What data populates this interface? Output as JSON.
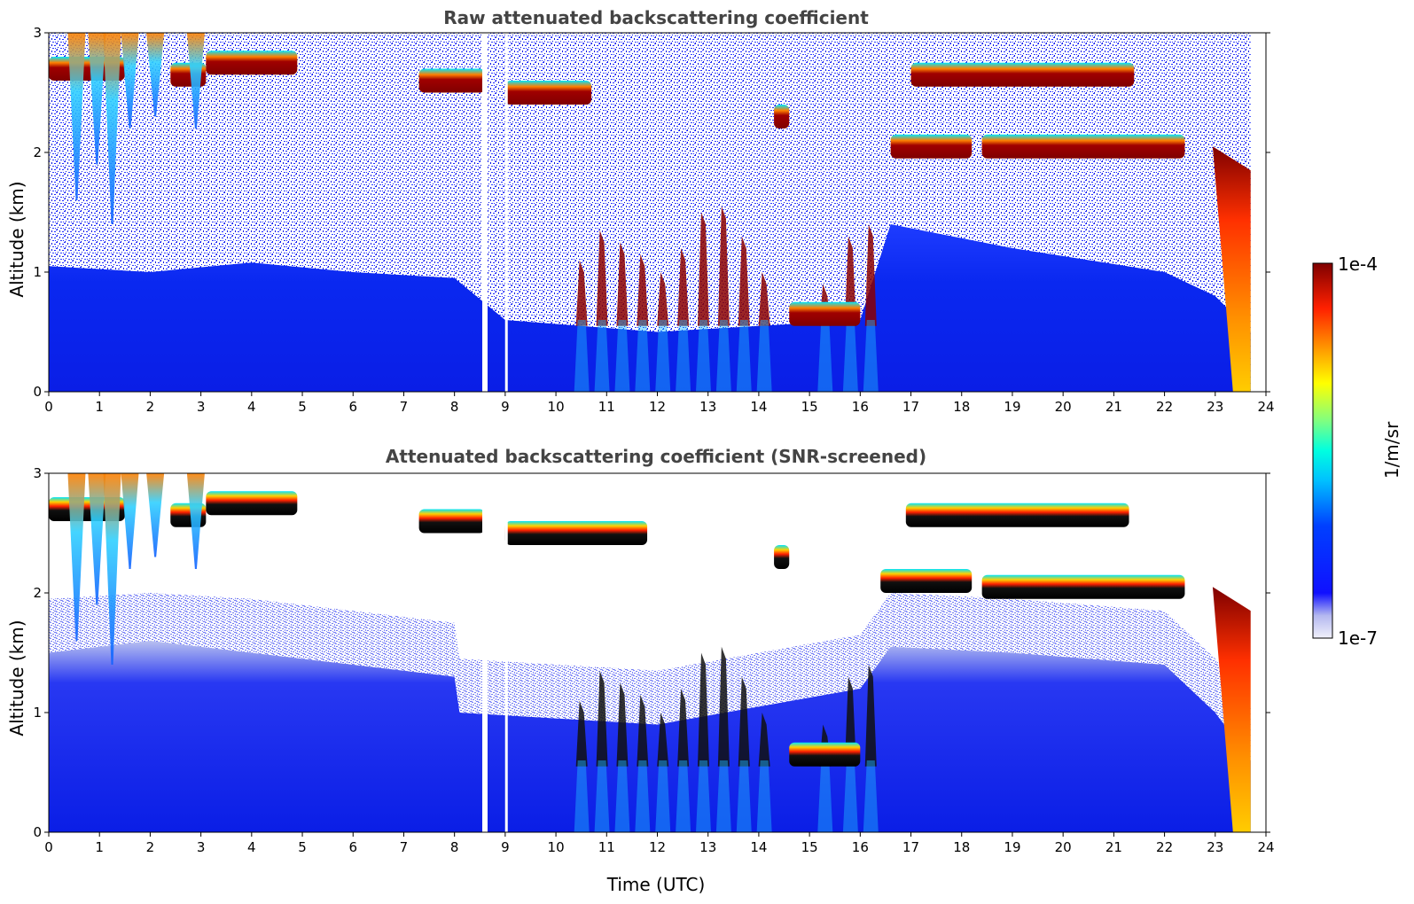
{
  "chart_data": [
    {
      "type": "heatmap",
      "title": "Raw attenuated backscattering coefficient",
      "xlabel": "",
      "ylabel": "Altitude (km)",
      "xlim": [
        0,
        24
      ],
      "ylim": [
        0,
        3
      ],
      "xticks": [
        0,
        1,
        2,
        3,
        4,
        5,
        6,
        7,
        8,
        9,
        10,
        11,
        12,
        13,
        14,
        15,
        16,
        17,
        18,
        19,
        20,
        21,
        22,
        23,
        24
      ],
      "yticks": [
        0,
        1,
        2,
        3
      ],
      "boundary_layer_top": [
        [
          0,
          1.05
        ],
        [
          2,
          1.0
        ],
        [
          4,
          1.08
        ],
        [
          6,
          1.0
        ],
        [
          8,
          0.95
        ],
        [
          9,
          0.6
        ],
        [
          12,
          0.5
        ],
        [
          16,
          0.6
        ],
        [
          16.6,
          1.4
        ],
        [
          19,
          1.2
        ],
        [
          22,
          1.0
        ],
        [
          23,
          0.8
        ],
        [
          23.7,
          0.5
        ]
      ],
      "clouds": [
        {
          "x0": 0,
          "x1": 1.5,
          "alt": 2.7
        },
        {
          "x0": 2.4,
          "x1": 3.1,
          "alt": 2.65
        },
        {
          "x0": 3.1,
          "x1": 4.9,
          "alt": 2.75
        },
        {
          "x0": 7.3,
          "x1": 8.6,
          "alt": 2.6
        },
        {
          "x0": 9.0,
          "x1": 10.7,
          "alt": 2.5
        },
        {
          "x0": 14.3,
          "x1": 14.6,
          "alt": 2.3
        },
        {
          "x0": 16.6,
          "x1": 18.2,
          "alt": 2.05
        },
        {
          "x0": 17.0,
          "x1": 21.4,
          "alt": 2.65
        },
        {
          "x0": 18.4,
          "x1": 22.4,
          "alt": 2.05
        },
        {
          "x0": 14.6,
          "x1": 16.0,
          "alt": 0.65
        }
      ],
      "gaps": [
        8.6,
        9.05
      ],
      "data_end": 23.7,
      "color_scale": "jet"
    },
    {
      "type": "heatmap",
      "title": "Attenuated backscattering coefficient (SNR-screened)",
      "xlabel": "Time (UTC)",
      "ylabel": "Altitude (km)",
      "xlim": [
        0,
        24
      ],
      "ylim": [
        0,
        3
      ],
      "xticks": [
        0,
        1,
        2,
        3,
        4,
        5,
        6,
        7,
        8,
        9,
        10,
        11,
        12,
        13,
        14,
        15,
        16,
        17,
        18,
        19,
        20,
        21,
        22,
        23,
        24
      ],
      "yticks": [
        0,
        1,
        2,
        3
      ],
      "boundary_layer_top": [
        [
          0,
          1.5
        ],
        [
          2,
          1.6
        ],
        [
          4,
          1.5
        ],
        [
          6,
          1.4
        ],
        [
          8,
          1.3
        ],
        [
          8.1,
          1.0
        ],
        [
          12,
          0.9
        ],
        [
          16,
          1.2
        ],
        [
          16.6,
          1.55
        ],
        [
          19,
          1.5
        ],
        [
          22,
          1.4
        ],
        [
          23,
          1.0
        ],
        [
          23.7,
          0.6
        ]
      ],
      "clouds": [
        {
          "x0": 0,
          "x1": 1.5,
          "alt": 2.7
        },
        {
          "x0": 2.4,
          "x1": 3.1,
          "alt": 2.65
        },
        {
          "x0": 3.1,
          "x1": 4.9,
          "alt": 2.75
        },
        {
          "x0": 7.3,
          "x1": 8.6,
          "alt": 2.6
        },
        {
          "x0": 9.0,
          "x1": 11.8,
          "alt": 2.5
        },
        {
          "x0": 14.3,
          "x1": 14.6,
          "alt": 2.3
        },
        {
          "x0": 16.4,
          "x1": 18.2,
          "alt": 2.1
        },
        {
          "x0": 16.9,
          "x1": 21.3,
          "alt": 2.65
        },
        {
          "x0": 18.4,
          "x1": 22.4,
          "alt": 2.05
        },
        {
          "x0": 14.6,
          "x1": 16.0,
          "alt": 0.65
        }
      ],
      "gaps": [
        8.6,
        9.05
      ],
      "data_end": 23.7,
      "color_scale": "jet"
    }
  ],
  "colorbar": {
    "max_label": "1e-4",
    "min_label": "1e-7",
    "label": "1/m/sr",
    "stops": [
      "#7f0000",
      "#ff0000",
      "#ff7f00",
      "#ffff00",
      "#7fff7f",
      "#00ffff",
      "#007fff",
      "#0000ff",
      "#0000c8",
      "#c8c8f0",
      "#f0f0fa"
    ]
  }
}
